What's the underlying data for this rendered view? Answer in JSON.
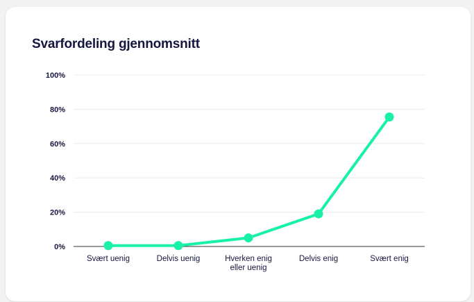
{
  "colors": {
    "series": "#19f0a8",
    "text": "#16153f",
    "gridline": "#ececec",
    "axis": "#333333"
  },
  "chart_data": {
    "type": "line",
    "title": "Svarfordeling gjennomsnitt",
    "xlabel": "",
    "ylabel": "",
    "categories": [
      "Svært uenig",
      "Delvis uenig",
      "Hverken enig eller uenig",
      "Delvis enig",
      "Svært enig"
    ],
    "category_lines": [
      [
        "Svært uenig"
      ],
      [
        "Delvis uenig"
      ],
      [
        "Hverken enig",
        "eller uenig"
      ],
      [
        "Delvis enig"
      ],
      [
        "Svært enig"
      ]
    ],
    "series": [
      {
        "values": [
          0.5,
          0.5,
          5,
          19,
          75.5
        ]
      }
    ],
    "ylim": [
      0,
      100
    ],
    "yticks": [
      0,
      20,
      40,
      60,
      80,
      100
    ],
    "ytick_labels": [
      "0%",
      "20%",
      "40%",
      "60%",
      "80%",
      "100%"
    ],
    "grid": true,
    "legend": "none"
  }
}
